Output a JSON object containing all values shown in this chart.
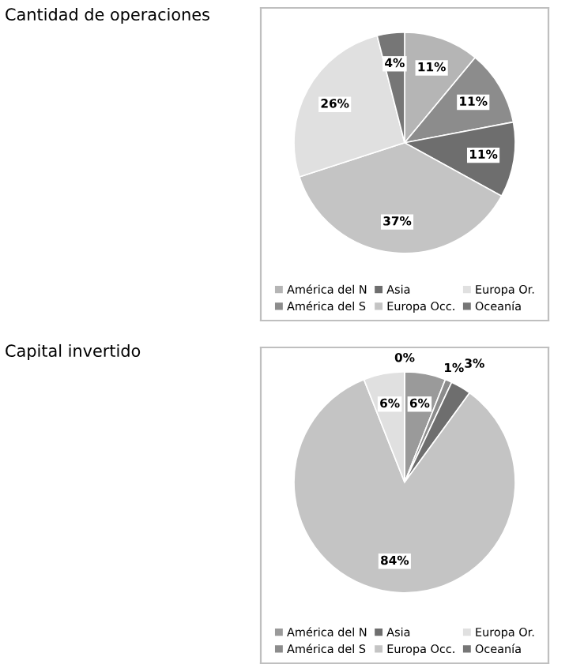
{
  "chart_data": [
    {
      "type": "pie",
      "title": "Cantidad de operaciones",
      "categories": [
        "América del N",
        "América del S",
        "Asia",
        "Europa Occ.",
        "Europa Or.",
        "Oceanía"
      ],
      "values": [
        11,
        11,
        11,
        37,
        26,
        4
      ],
      "colors": [
        "#b5b5b5",
        "#8c8c8c",
        "#6e6e6e",
        "#c4c4c4",
        "#e0e0e0",
        "#767676"
      ],
      "value_labels": [
        "11%",
        "11%",
        "11%",
        "37%",
        "26%",
        "4%"
      ],
      "legend": "bottom"
    },
    {
      "type": "pie",
      "title": "Capital invertido",
      "categories": [
        "América del N",
        "América del S",
        "Asia",
        "Europa Occ.",
        "Europa Or.",
        "Oceanía"
      ],
      "values": [
        6,
        1,
        3,
        84,
        6,
        0
      ],
      "colors": [
        "#9a9a9a",
        "#8c8c8c",
        "#6e6e6e",
        "#c4c4c4",
        "#e0e0e0",
        "#767676"
      ],
      "value_labels": [
        "6%",
        "1%",
        "3%",
        "84%",
        "6%",
        "0%"
      ],
      "legend": "bottom"
    }
  ]
}
